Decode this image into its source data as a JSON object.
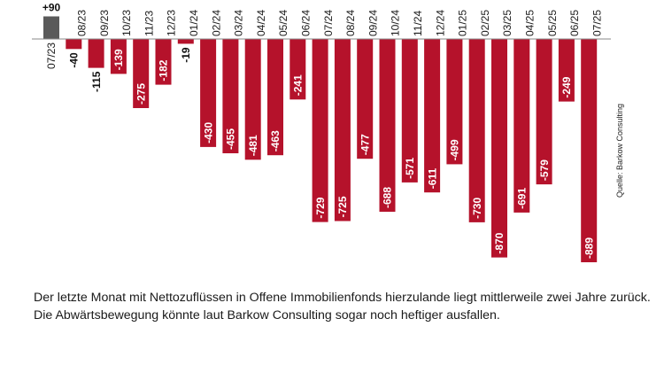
{
  "chart_data": {
    "type": "bar",
    "categories": [
      "07/23",
      "08/23",
      "09/23",
      "10/23",
      "11/23",
      "12/23",
      "01/24",
      "02/24",
      "03/24",
      "04/24",
      "05/24",
      "06/24",
      "07/24",
      "08/24",
      "09/24",
      "10/24",
      "11/24",
      "12/24",
      "01/25",
      "02/25",
      "03/25",
      "04/25",
      "05/25",
      "06/25",
      "07/25"
    ],
    "values": [
      90,
      -40,
      -115,
      -139,
      -275,
      -182,
      -19,
      -430,
      -455,
      -481,
      -463,
      -241,
      -729,
      -725,
      -477,
      -688,
      -571,
      -611,
      -499,
      -730,
      -870,
      -691,
      -579,
      -249,
      -889
    ],
    "value_labels": [
      "+90",
      "-40",
      "-115",
      "-139",
      "-275",
      "-182",
      "-19",
      "-430",
      "-455",
      "-481",
      "-463",
      "-241",
      "-729",
      "-725",
      "-477",
      "-688",
      "-571",
      "-611",
      "-499",
      "-730",
      "-870",
      "-691",
      "-579",
      "-249",
      "-889"
    ],
    "ylim": [
      -889,
      90
    ],
    "grid": false,
    "colors": {
      "positive": "#5a5a5a",
      "negative": "#b5122b",
      "baseline": "#8a8a8a"
    }
  },
  "source": "Quelle: Barkow Consulting",
  "caption": "Der letzte Monat mit Nettozuflüssen in Offene Immobilienfonds hierzulande liegt mittlerweile zwei Jahre zurück. Die Abwärtsbewegung könnte laut Barkow Consulting sogar noch heftiger ausfallen."
}
